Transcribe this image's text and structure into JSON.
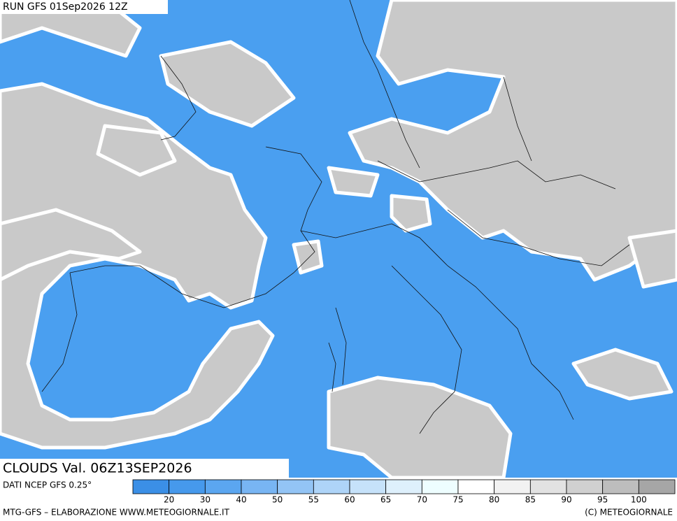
{
  "header": {
    "run": "RUN GFS 01Sep2026 12Z",
    "field": "CLOUDS Val. 06Z13SEP2026"
  },
  "legend": {
    "source": "DATI NCEP GFS 0.25°",
    "colors": [
      "#3b8fe6",
      "#4699ec",
      "#5ba6f0",
      "#78b5f3",
      "#93c4f5",
      "#aed4f8",
      "#c6e2fa",
      "#def0fc",
      "#eefeff",
      "#ffffff",
      "#f2f2f2",
      "#e2e2e2",
      "#d0d0d0",
      "#bdbdbd",
      "#a6a6a6"
    ],
    "ticks": [
      20,
      30,
      40,
      50,
      55,
      60,
      65,
      70,
      75,
      80,
      85,
      90,
      95,
      100
    ]
  },
  "footer": {
    "left": "MTG-GFS – ELABORAZIONE WWW.METEOGIORNALE.IT",
    "right": "(C) METEOGIORNALE"
  }
}
